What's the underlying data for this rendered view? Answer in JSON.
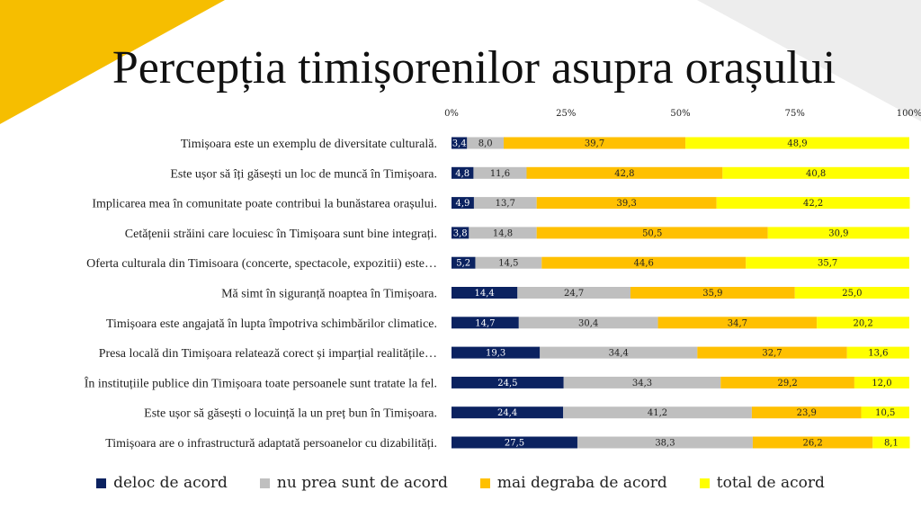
{
  "title": "Percepția timișorenilor asupra orașului",
  "colors": {
    "deco_orange": "#F6BE00",
    "deco_gray": "#EDEDED"
  },
  "chart_data": {
    "type": "bar",
    "orientation": "horizontal",
    "stacked": "percent",
    "xlim": [
      0,
      100
    ],
    "x_ticks": [
      "0%",
      "25%",
      "50%",
      "75%",
      "100%"
    ],
    "x_tick_values": [
      0,
      25,
      50,
      75,
      100
    ],
    "axis_position": "top",
    "grid": false,
    "legend_position": "bottom",
    "categories": [
      "Timișoara este un exemplu de diversitate culturală.",
      "Este ușor să îți găsești un loc de muncă în Timișoara.",
      "Implicarea mea în comunitate poate contribui la bunăstarea orașului.",
      "Cetățenii străini care locuiesc în Timișoara sunt bine integrați.",
      "Oferta culturala din Timisoara (concerte, spectacole, expozitii) este…",
      "Mă simt în siguranță noaptea în Timișoara.",
      "Timișoara este angajată în lupta împotriva schimbărilor climatice.",
      "Presa locală din Timișoara relatează corect și imparțial realitățile…",
      "În instituțiile publice din Timișoara toate persoanele sunt tratate la fel.",
      "Este ușor să găsești o locuință la un preț bun în Timișoara.",
      "Timișoara are o infrastructură adaptată persoanelor cu dizabilități."
    ],
    "series": [
      {
        "name": "deloc de acord",
        "color": "#0B2260",
        "label_color": "#ffffff",
        "values": [
          3.4,
          4.8,
          4.9,
          3.8,
          5.2,
          14.4,
          14.7,
          19.3,
          24.5,
          24.4,
          27.5
        ],
        "labels": [
          "3,4",
          "4,8",
          "4,9",
          "3,8",
          "5,2",
          "14,4",
          "14,7",
          "19,3",
          "24,5",
          "24,4",
          "27,5"
        ]
      },
      {
        "name": "nu prea sunt de acord",
        "color": "#BFBFBF",
        "label_color": "#222222",
        "values": [
          8.0,
          11.6,
          13.7,
          14.8,
          14.5,
          24.7,
          30.4,
          34.4,
          34.3,
          41.2,
          38.3
        ],
        "labels": [
          "8,0",
          "11,6",
          "13,7",
          "14,8",
          "14,5",
          "24,7",
          "30,4",
          "34,4",
          "34,3",
          "41,2",
          "38,3"
        ]
      },
      {
        "name": "mai degraba de acord",
        "color": "#FFC000",
        "label_color": "#222222",
        "values": [
          39.7,
          42.8,
          39.3,
          50.5,
          44.6,
          35.9,
          34.7,
          32.7,
          29.2,
          23.9,
          26.2
        ],
        "labels": [
          "39,7",
          "42,8",
          "39,3",
          "50,5",
          "44,6",
          "35,9",
          "34,7",
          "32,7",
          "29,2",
          "23,9",
          "26,2"
        ]
      },
      {
        "name": "total de acord",
        "color": "#FFFF00",
        "label_color": "#222222",
        "values": [
          48.9,
          40.8,
          42.2,
          30.9,
          35.7,
          25.0,
          20.2,
          13.6,
          12.0,
          10.5,
          8.1
        ],
        "labels": [
          "48,9",
          "40,8",
          "42,2",
          "30,9",
          "35,7",
          "25,0",
          "20,2",
          "13,6",
          "12,0",
          "10,5",
          "8,1"
        ]
      }
    ]
  }
}
